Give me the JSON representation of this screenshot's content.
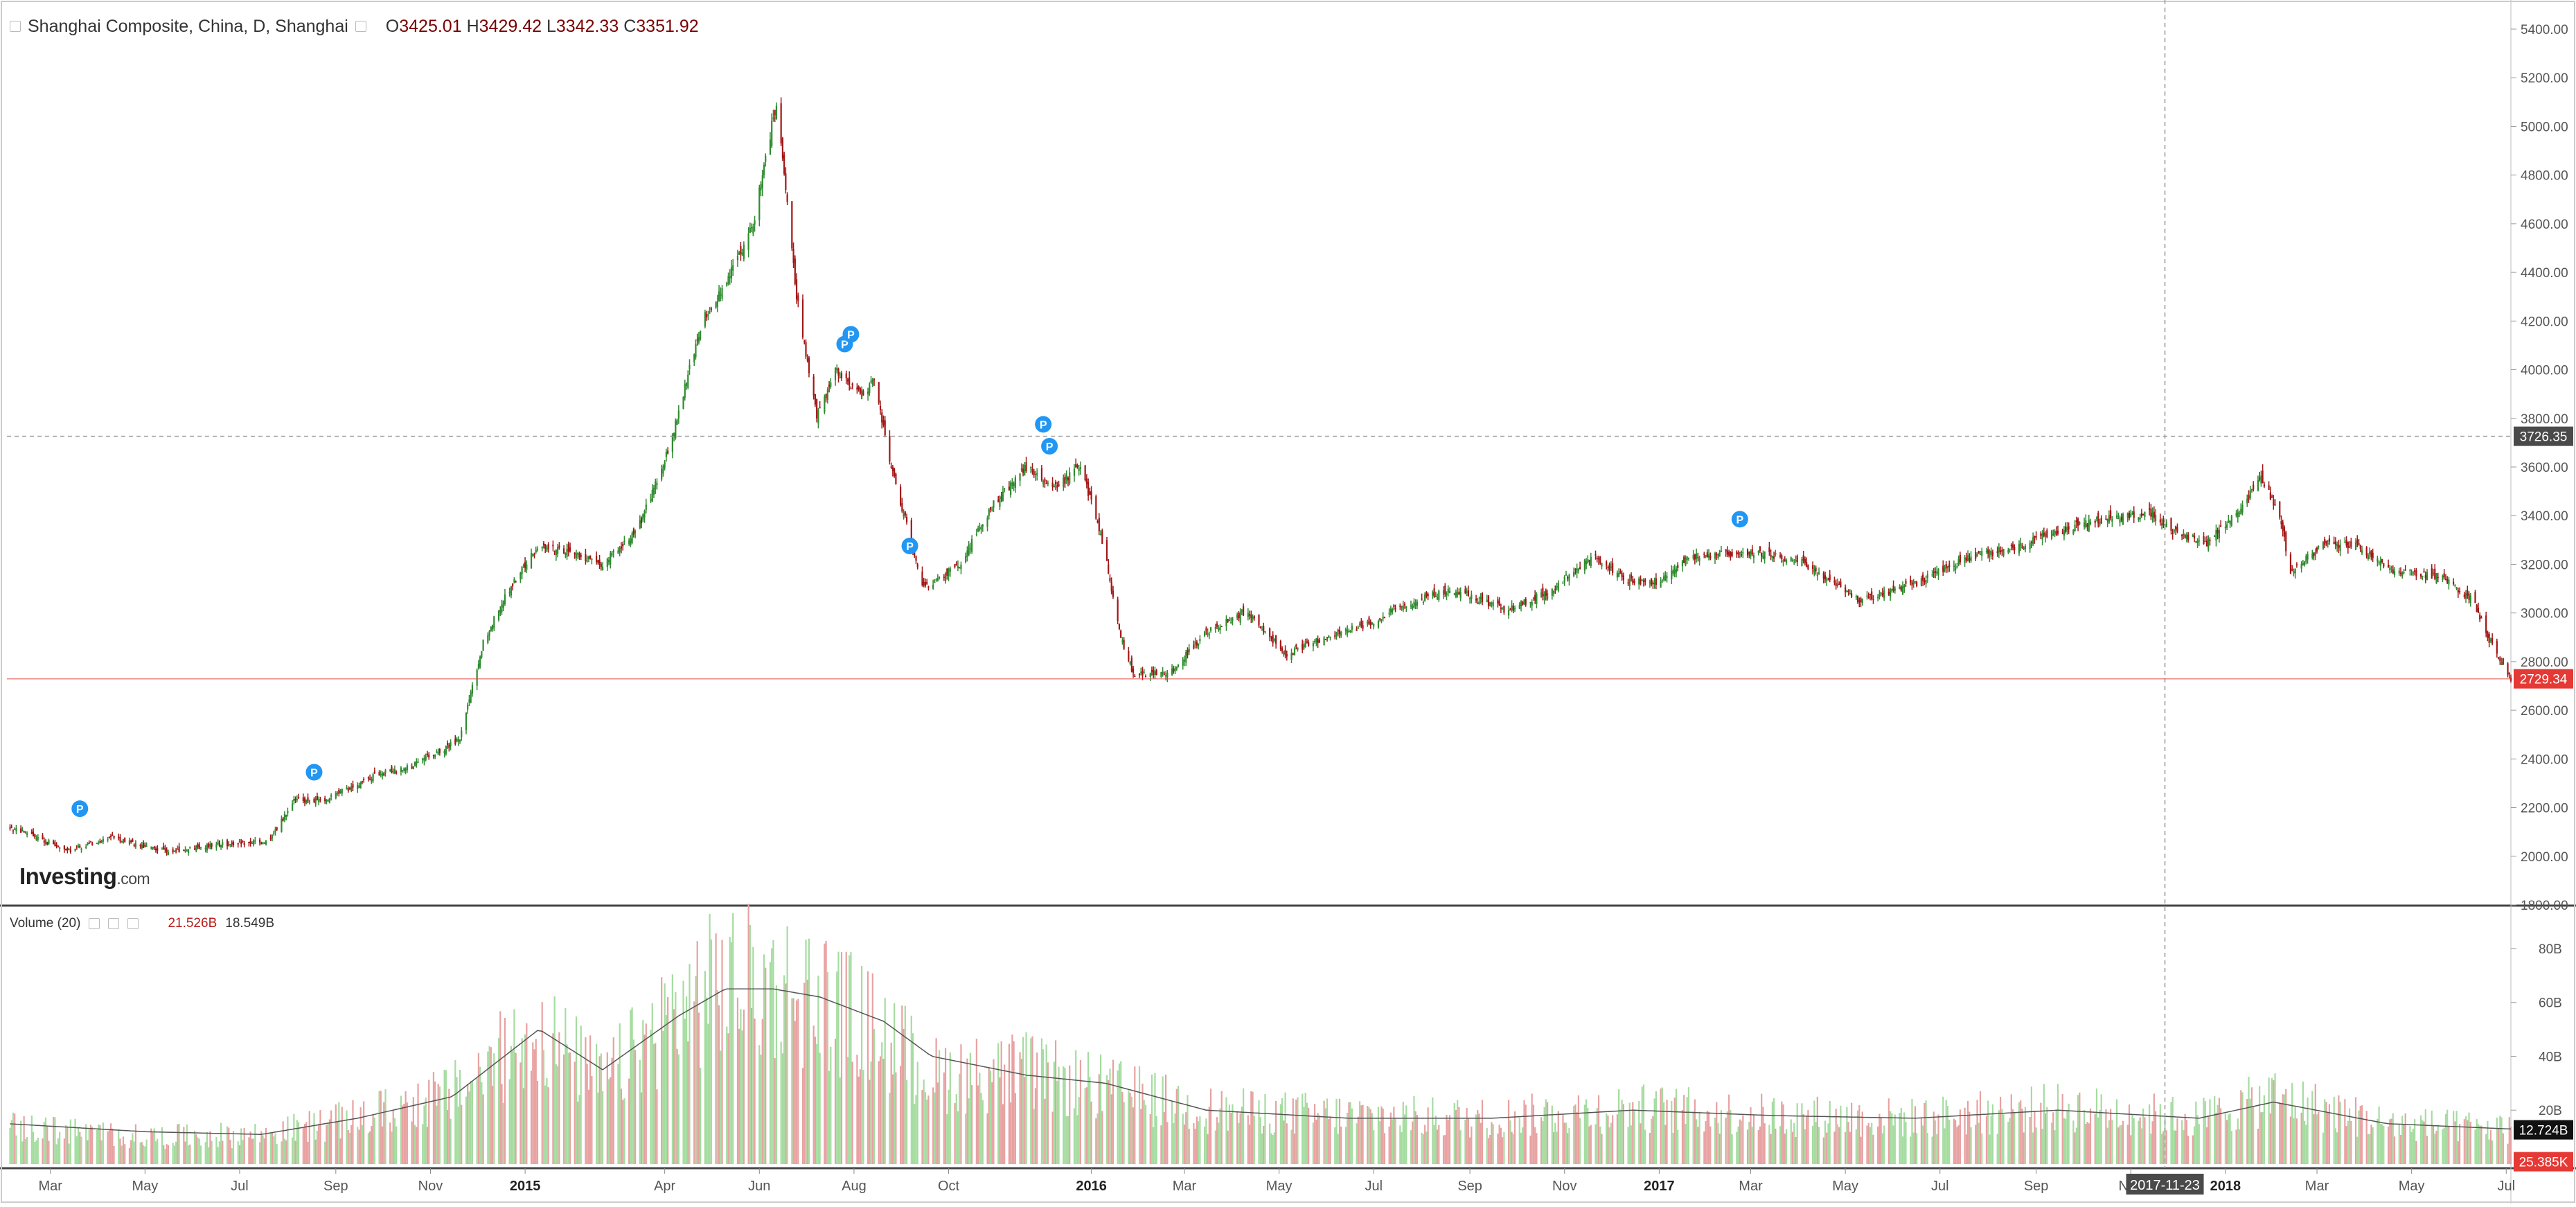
{
  "header": {
    "title": "Shanghai Composite, China, D, Shanghai",
    "open": "3425.01",
    "high": "3429.42",
    "low": "3342.33",
    "close": "3351.92",
    "open_prefix": "O",
    "high_prefix": "H",
    "low_prefix": "L",
    "close_prefix": "C"
  },
  "volume_legend": {
    "label": "Volume (20)",
    "value1": "21.526B",
    "value2": "18.549B"
  },
  "logo": {
    "brand": "Investing",
    "suffix": ".com"
  },
  "crosshair": {
    "price_label": "3726.35",
    "date_label": "2017-11-23",
    "price": 3726.35
  },
  "last_price": {
    "label": "2729.34",
    "value": 2729.34
  },
  "volume_markers": {
    "ma_label": "12.724B",
    "volume_label": "25.385K"
  },
  "colors": {
    "up": "#2e8b2e",
    "down": "#a31515",
    "vol_up": "#a5dca0",
    "vol_down": "#e8a1a1",
    "last_price": "#e53935",
    "crosshair": "#555555",
    "marker": "#2196f3"
  },
  "chart_data": [
    {
      "type": "candlestick",
      "title": "Shanghai Composite, China, D, Shanghai",
      "ylim": [
        1800,
        5400
      ],
      "y_ticks": [
        "5400.00",
        "5200.00",
        "5000.00",
        "4800.00",
        "4600.00",
        "4400.00",
        "4200.00",
        "4000.00",
        "3800.00",
        "3600.00",
        "3400.00",
        "3200.00",
        "3000.00",
        "2800.00",
        "2600.00",
        "2400.00",
        "2200.00",
        "2000.00",
        "1800.00"
      ],
      "x_ticks": [
        "Mar",
        "May",
        "Jul",
        "Sep",
        "Nov",
        "2015",
        "Apr",
        "Jun",
        "Aug",
        "Oct",
        "2016",
        "Mar",
        "May",
        "Jul",
        "Sep",
        "Nov",
        "2017",
        "Mar",
        "May",
        "Jul",
        "Sep",
        "Nov",
        "2018",
        "Mar",
        "May",
        "Jul"
      ],
      "x_tick_dates": [
        "2014-03-01",
        "2014-05-01",
        "2014-07-01",
        "2014-09-01",
        "2014-11-01",
        "2015-01-01",
        "2015-04-01",
        "2015-06-01",
        "2015-08-01",
        "2015-10-01",
        "2016-01-01",
        "2016-03-01",
        "2016-05-01",
        "2016-07-01",
        "2016-09-01",
        "2016-11-01",
        "2017-01-01",
        "2017-03-01",
        "2017-05-01",
        "2017-07-01",
        "2017-09-01",
        "2017-11-01",
        "2018-01-01",
        "2018-03-01",
        "2018-05-01",
        "2018-07-01"
      ],
      "x_range": [
        "2014-02-01",
        "2018-07-04"
      ],
      "series": [
        {
          "x": [
            "2014-02-01",
            "2014-02-20",
            "2014-03-12",
            "2014-04-10",
            "2014-05-01",
            "2014-05-20",
            "2014-06-20",
            "2014-07-20",
            "2014-08-05",
            "2014-08-25",
            "2014-09-25",
            "2014-10-20",
            "2014-11-20",
            "2014-12-05",
            "2014-12-20",
            "2015-01-10",
            "2015-01-30",
            "2015-02-20",
            "2015-03-15",
            "2015-04-05",
            "2015-04-25",
            "2015-05-10",
            "2015-05-28",
            "2015-06-12",
            "2015-06-25",
            "2015-07-08",
            "2015-07-20",
            "2015-08-05",
            "2015-08-14",
            "2015-08-25",
            "2015-09-15",
            "2015-10-08",
            "2015-10-30",
            "2015-11-20",
            "2015-12-10",
            "2015-12-25",
            "2016-01-08",
            "2016-01-20",
            "2016-01-28",
            "2016-02-20",
            "2016-03-15",
            "2016-04-10",
            "2016-05-05",
            "2016-06-01",
            "2016-06-25",
            "2016-07-20",
            "2016-08-20",
            "2016-09-25",
            "2016-10-25",
            "2016-11-20",
            "2016-12-10",
            "2016-12-30",
            "2017-01-20",
            "2017-02-25",
            "2017-04-01",
            "2017-05-10",
            "2017-06-15",
            "2017-07-20",
            "2017-08-20",
            "2017-09-20",
            "2017-10-20",
            "2017-11-13",
            "2017-11-30",
            "2017-12-20",
            "2018-01-10",
            "2018-01-24",
            "2018-02-05",
            "2018-02-12",
            "2018-03-05",
            "2018-03-25",
            "2018-04-20",
            "2018-05-20",
            "2018-06-10",
            "2018-06-20",
            "2018-07-04"
          ],
          "close": [
            2120,
            2080,
            2020,
            2080,
            2040,
            2020,
            2050,
            2060,
            2230,
            2230,
            2330,
            2370,
            2480,
            2880,
            3080,
            3280,
            3250,
            3200,
            3350,
            3700,
            4200,
            4350,
            4600,
            5100,
            4300,
            3800,
            4000,
            3900,
            3950,
            3600,
            3100,
            3200,
            3450,
            3600,
            3520,
            3600,
            3300,
            2900,
            2750,
            2750,
            2920,
            3010,
            2830,
            2900,
            2950,
            3030,
            3100,
            3010,
            3100,
            3240,
            3130,
            3130,
            3230,
            3250,
            3220,
            3050,
            3120,
            3230,
            3270,
            3350,
            3390,
            3410,
            3330,
            3290,
            3420,
            3560,
            3400,
            3170,
            3280,
            3280,
            3170,
            3150,
            3050,
            2890,
            2729
          ]
        }
      ],
      "events": [
        "P",
        "P",
        "P",
        "P",
        "P",
        "P",
        "P",
        "P"
      ],
      "event_dates": [
        "2014-03-20",
        "2014-08-18",
        "2015-07-26",
        "2015-07-30",
        "2015-09-06",
        "2015-12-01",
        "2015-12-05",
        "2017-02-22"
      ],
      "event_prices": [
        2110,
        2260,
        4020,
        4060,
        3190,
        3690,
        3600,
        3300
      ]
    },
    {
      "type": "bar",
      "title": "Volume (20)",
      "ylim": [
        0,
        90
      ],
      "y_ticks": [
        "80B",
        "60B",
        "40B",
        "20B"
      ],
      "unit": "B",
      "x": [
        "2014-02-01",
        "2014-05-01",
        "2014-07-15",
        "2014-09-15",
        "2014-11-15",
        "2015-01-10",
        "2015-02-20",
        "2015-04-10",
        "2015-05-10",
        "2015-06-10",
        "2015-07-10",
        "2015-08-20",
        "2015-09-20",
        "2015-11-20",
        "2016-01-10",
        "2016-03-15",
        "2016-06-15",
        "2016-09-15",
        "2016-12-15",
        "2017-03-15",
        "2017-06-15",
        "2017-09-15",
        "2017-12-15",
        "2018-02-01",
        "2018-04-15",
        "2018-07-04"
      ],
      "values": [
        14,
        10,
        11,
        17,
        26,
        50,
        30,
        58,
        68,
        66,
        62,
        48,
        33,
        34,
        28,
        20,
        18,
        17,
        21,
        18,
        17,
        21,
        17,
        25,
        15,
        13
      ],
      "ma_values": [
        15,
        12,
        11,
        17,
        25,
        50,
        35,
        55,
        65,
        65,
        62,
        53,
        40,
        33,
        30,
        20,
        17,
        17,
        20,
        18,
        17,
        20,
        17,
        23,
        15,
        13
      ]
    }
  ]
}
